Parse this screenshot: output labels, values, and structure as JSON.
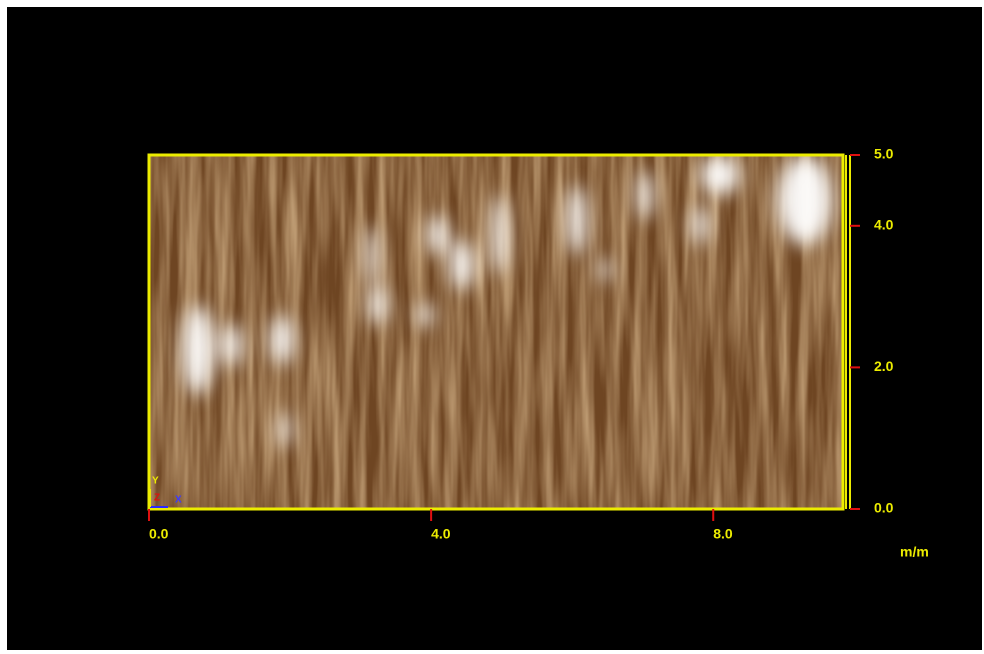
{
  "chart_data": {
    "type": "surface",
    "xlim": [
      0,
      9.84
    ],
    "ylim": [
      0,
      5.0
    ],
    "xticks": [
      {
        "value": 0,
        "label": "0.0"
      },
      {
        "value": 4,
        "label": "4.0"
      },
      {
        "value": 8,
        "label": "8.0"
      }
    ],
    "yticks": [
      {
        "value": 0,
        "label": "0.0"
      },
      {
        "value": 2,
        "label": "2.0"
      },
      {
        "value": 4,
        "label": "4.0"
      },
      {
        "value": 5,
        "label": "5.0"
      }
    ],
    "x_label": "m/m",
    "axis_gizmo": [
      "Y",
      "Z",
      "X"
    ],
    "frame_color": "#ecec00"
  }
}
